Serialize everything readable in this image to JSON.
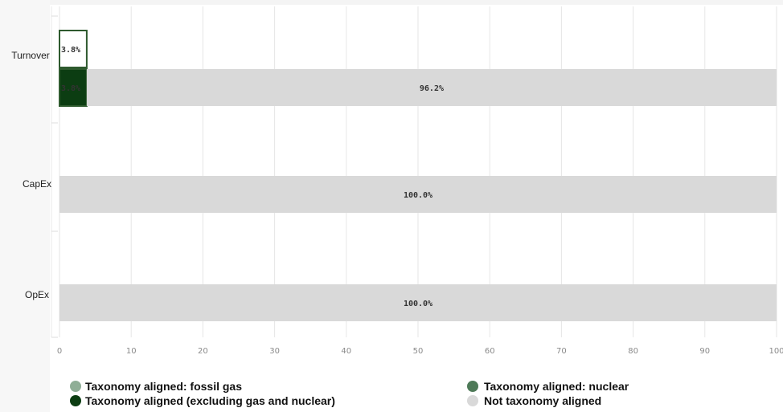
{
  "chart_data": {
    "type": "bar",
    "orientation": "horizontal",
    "categories": [
      "Turnover",
      "CapEx",
      "OpEx"
    ],
    "xlim": [
      0,
      100
    ],
    "xticks": [
      0,
      10,
      20,
      30,
      40,
      50,
      60,
      70,
      80,
      90,
      100
    ],
    "grid": true,
    "legend_position": "bottom",
    "groups": [
      {
        "category": "Turnover",
        "bars": [
          {
            "segments": [
              {
                "series": "Taxonomy aligned: fossil gas",
                "value": 3.8,
                "label": "3.8%"
              }
            ]
          },
          {
            "segments": [
              {
                "series": "Taxonomy aligned (excluding gas and nuclear)",
                "value": 3.8,
                "label": "3.8%"
              },
              {
                "series": "Not taxonomy aligned",
                "value": 96.2,
                "label": "96.2%"
              }
            ]
          }
        ]
      },
      {
        "category": "CapEx",
        "bars": [
          {
            "segments": [
              {
                "series": "Not taxonomy aligned",
                "value": 100.0,
                "label": "100.0%"
              }
            ]
          }
        ]
      },
      {
        "category": "OpEx",
        "bars": [
          {
            "segments": [
              {
                "series": "Not taxonomy aligned",
                "value": 100.0,
                "label": "100.0%"
              }
            ]
          }
        ]
      }
    ],
    "legend": [
      {
        "name": "Taxonomy aligned: fossil gas",
        "color": "#8fae96",
        "fill": "#ffffff",
        "stroke": "#2e5a2e"
      },
      {
        "name": "Taxonomy aligned: nuclear",
        "color": "#4e7a58"
      },
      {
        "name": "Taxonomy aligned (excluding gas and nuclear)",
        "color": "#0c3d12",
        "fill": "#0c3d12",
        "stroke": "#2e5a2e"
      },
      {
        "name": "Not taxonomy aligned",
        "color": "#d9d9d9",
        "fill": "#d9d9d9"
      }
    ]
  }
}
